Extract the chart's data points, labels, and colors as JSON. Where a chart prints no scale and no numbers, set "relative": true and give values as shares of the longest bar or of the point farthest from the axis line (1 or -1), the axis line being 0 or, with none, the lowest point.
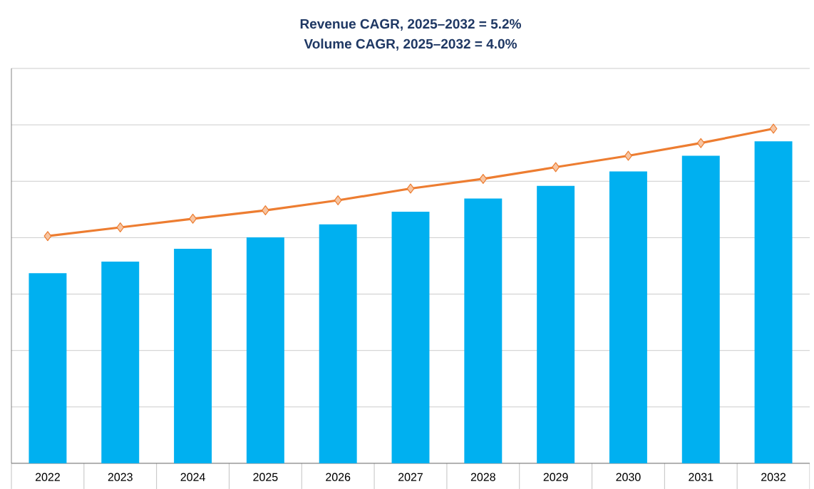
{
  "chart_data": {
    "type": "bar",
    "title": "Revenue CAGR, 2025–2032 = 5.2%",
    "subtitle": "Volume CAGR, 2025–2032 = 4.0%",
    "categories": [
      "2022",
      "2023",
      "2024",
      "2025",
      "2026",
      "2027",
      "2028",
      "2029",
      "2030",
      "2031",
      "2032"
    ],
    "relative": true,
    "grid": "y",
    "marker": "diamond",
    "series": [
      {
        "color": "#00b0f0",
        "values": [
          0.568,
          0.603,
          0.641,
          0.675,
          0.714,
          0.752,
          0.791,
          0.829,
          0.872,
          0.919,
          0.962
        ]
      },
      {
        "type": "line",
        "color": "#ed7d31",
        "values": [
          0.679,
          0.705,
          0.731,
          0.756,
          0.786,
          0.821,
          0.85,
          0.885,
          0.919,
          0.957,
          1
        ]
      }
    ]
  }
}
